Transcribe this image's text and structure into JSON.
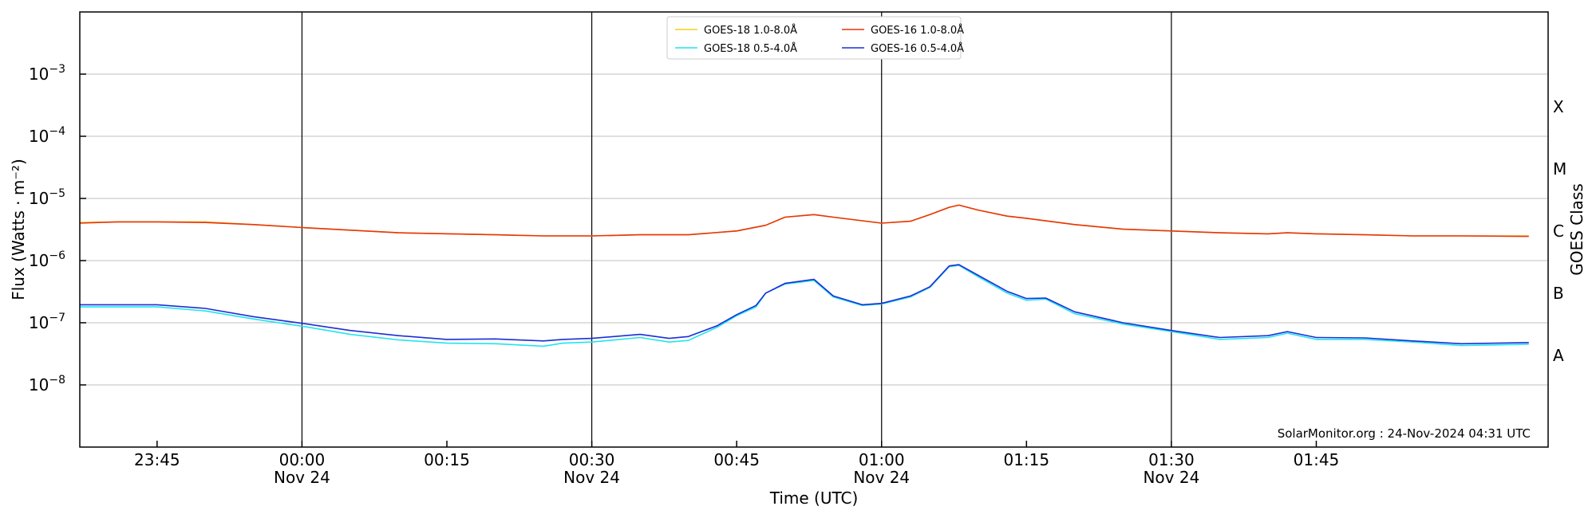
{
  "chart_data": {
    "type": "line",
    "xlabel": "Time (UTC)",
    "ylabel": "Flux (Watts · m⁻²)",
    "y2label": "GOES Class",
    "y_scale": "log",
    "ylim": [
      1e-09,
      0.01
    ],
    "xlim": [
      "23:37",
      "02:09"
    ],
    "grid": "horizontal",
    "legend_position": "top-center",
    "annotation": "SolarMonitor.org : 24-Nov-2024 04:31 UTC",
    "x_ticks": [
      {
        "time": "23:45",
        "label": "23:45",
        "sublabel": ""
      },
      {
        "time": "00:00",
        "label": "00:00",
        "sublabel": "Nov 24"
      },
      {
        "time": "00:15",
        "label": "00:15",
        "sublabel": ""
      },
      {
        "time": "00:30",
        "label": "00:30",
        "sublabel": "Nov 24"
      },
      {
        "time": "00:45",
        "label": "00:45",
        "sublabel": ""
      },
      {
        "time": "01:00",
        "label": "01:00",
        "sublabel": "Nov 24"
      },
      {
        "time": "01:15",
        "label": "01:15",
        "sublabel": ""
      },
      {
        "time": "01:30",
        "label": "01:30",
        "sublabel": "Nov 24"
      },
      {
        "time": "01:45",
        "label": "01:45",
        "sublabel": ""
      }
    ],
    "vertical_lines": [
      "00:00",
      "00:30",
      "01:00",
      "01:30"
    ],
    "y_ticks": [
      {
        "value": 1e-08,
        "mantissa": "10",
        "exponent": "−8"
      },
      {
        "value": 1e-07,
        "mantissa": "10",
        "exponent": "−7"
      },
      {
        "value": 1e-06,
        "mantissa": "10",
        "exponent": "−6"
      },
      {
        "value": 1e-05,
        "mantissa": "10",
        "exponent": "−5"
      },
      {
        "value": 0.0001,
        "mantissa": "10",
        "exponent": "−4"
      },
      {
        "value": 0.001,
        "mantissa": "10",
        "exponent": "−3"
      }
    ],
    "goes_classes": [
      {
        "label": "A",
        "value": 3e-08
      },
      {
        "label": "B",
        "value": 3e-07
      },
      {
        "label": "C",
        "value": 3e-06
      },
      {
        "label": "M",
        "value": 3e-05
      },
      {
        "label": "X",
        "value": 0.0003
      }
    ],
    "series": [
      {
        "name": "GOES-18 1.0-8.0Å",
        "color": "#f2d21a",
        "x": [
          "23:37",
          "23:41",
          "23:45",
          "23:50",
          "23:55",
          "00:00",
          "00:10",
          "00:20",
          "00:25",
          "00:30",
          "00:35",
          "00:40",
          "00:45",
          "00:48",
          "00:50",
          "00:53",
          "00:55",
          "01:00",
          "01:03",
          "01:05",
          "01:07",
          "01:08",
          "01:10",
          "01:13",
          "01:15",
          "01:20",
          "01:25",
          "01:30",
          "01:35",
          "01:40",
          "01:42",
          "01:45",
          "01:50",
          "01:55",
          "02:00",
          "02:07"
        ],
        "values": [
          4.1e-06,
          4.2e-06,
          4.2e-06,
          4.2e-06,
          3.8e-06,
          3.4e-06,
          2.8e-06,
          2.6e-06,
          2.5e-06,
          2.5e-06,
          2.6e-06,
          2.6e-06,
          3e-06,
          3.7e-06,
          5e-06,
          5.5e-06,
          5e-06,
          4e-06,
          4.3e-06,
          5.5e-06,
          7.2e-06,
          7.8e-06,
          6.5e-06,
          5.2e-06,
          4.8e-06,
          3.8e-06,
          3.2e-06,
          3e-06,
          2.8e-06,
          2.7e-06,
          2.8e-06,
          2.7e-06,
          2.6e-06,
          2.5e-06,
          2.5e-06,
          2.5e-06
        ]
      },
      {
        "name": "GOES-18 0.5-4.0Å",
        "color": "#22e3f0",
        "x": [
          "23:37",
          "23:41",
          "23:45",
          "23:50",
          "23:55",
          "00:00",
          "00:05",
          "00:10",
          "00:15",
          "00:20",
          "00:25",
          "00:27",
          "00:30",
          "00:35",
          "00:38",
          "00:40",
          "00:43",
          "00:45",
          "00:47",
          "00:48",
          "00:50",
          "00:53",
          "00:55",
          "00:58",
          "01:00",
          "01:03",
          "01:05",
          "01:07",
          "01:08",
          "01:10",
          "01:13",
          "01:15",
          "01:17",
          "01:20",
          "01:25",
          "01:30",
          "01:35",
          "01:40",
          "01:42",
          "01:45",
          "01:50",
          "01:55",
          "02:00",
          "02:07"
        ],
        "values": [
          1.8e-07,
          1.8e-07,
          1.8e-07,
          1.55e-07,
          1.15e-07,
          8.8e-08,
          6.5e-08,
          5.3e-08,
          4.7e-08,
          4.6e-08,
          4.2e-08,
          4.7e-08,
          4.9e-08,
          5.8e-08,
          4.9e-08,
          5.2e-08,
          8.5e-08,
          1.3e-07,
          1.8e-07,
          3e-07,
          4.2e-07,
          4.8e-07,
          2.6e-07,
          1.9e-07,
          2e-07,
          2.6e-07,
          3.7e-07,
          8e-07,
          8.4e-07,
          5.5e-07,
          3e-07,
          2.3e-07,
          2.4e-07,
          1.4e-07,
          9.5e-08,
          7.2e-08,
          5.4e-08,
          5.8e-08,
          6.8e-08,
          5.4e-08,
          5.4e-08,
          4.9e-08,
          4.3e-08,
          4.5e-08
        ]
      },
      {
        "name": "GOES-16 1.0-8.0Å",
        "color": "#e8340c",
        "x": [
          "23:37",
          "23:41",
          "23:45",
          "23:50",
          "23:55",
          "00:00",
          "00:10",
          "00:20",
          "00:25",
          "00:30",
          "00:35",
          "00:40",
          "00:45",
          "00:48",
          "00:50",
          "00:53",
          "00:55",
          "01:00",
          "01:03",
          "01:05",
          "01:07",
          "01:08",
          "01:10",
          "01:13",
          "01:15",
          "01:20",
          "01:25",
          "01:30",
          "01:35",
          "01:40",
          "01:42",
          "01:45",
          "01:50",
          "01:55",
          "02:00",
          "02:07"
        ],
        "values": [
          4e-06,
          4.2e-06,
          4.2e-06,
          4.1e-06,
          3.8e-06,
          3.4e-06,
          2.8e-06,
          2.6e-06,
          2.5e-06,
          2.5e-06,
          2.6e-06,
          2.6e-06,
          3e-06,
          3.7e-06,
          5e-06,
          5.5e-06,
          5e-06,
          4e-06,
          4.3e-06,
          5.5e-06,
          7.2e-06,
          7.8e-06,
          6.5e-06,
          5.2e-06,
          4.8e-06,
          3.8e-06,
          3.2e-06,
          3e-06,
          2.8e-06,
          2.7e-06,
          2.8e-06,
          2.7e-06,
          2.6e-06,
          2.5e-06,
          2.5e-06,
          2.45e-06
        ]
      },
      {
        "name": "GOES-16 0.5-4.0Å",
        "color": "#1b2ed6",
        "x": [
          "23:37",
          "23:41",
          "23:45",
          "23:50",
          "23:55",
          "00:00",
          "00:05",
          "00:10",
          "00:15",
          "00:20",
          "00:25",
          "00:27",
          "00:30",
          "00:35",
          "00:38",
          "00:40",
          "00:43",
          "00:45",
          "00:47",
          "00:48",
          "00:50",
          "00:53",
          "00:55",
          "00:58",
          "01:00",
          "01:03",
          "01:05",
          "01:07",
          "01:08",
          "01:10",
          "01:13",
          "01:15",
          "01:17",
          "01:20",
          "01:25",
          "01:30",
          "01:35",
          "01:40",
          "01:42",
          "01:45",
          "01:50",
          "01:55",
          "02:00",
          "02:07"
        ],
        "values": [
          1.95e-07,
          1.95e-07,
          1.95e-07,
          1.7e-07,
          1.25e-07,
          9.8e-08,
          7.5e-08,
          6.2e-08,
          5.4e-08,
          5.5e-08,
          5.1e-08,
          5.4e-08,
          5.6e-08,
          6.5e-08,
          5.6e-08,
          6e-08,
          9e-08,
          1.35e-07,
          1.9e-07,
          3e-07,
          4.3e-07,
          5e-07,
          2.7e-07,
          1.95e-07,
          2.05e-07,
          2.7e-07,
          3.8e-07,
          8.2e-07,
          8.6e-07,
          5.8e-07,
          3.2e-07,
          2.45e-07,
          2.5e-07,
          1.5e-07,
          1e-07,
          7.5e-08,
          5.8e-08,
          6.2e-08,
          7.2e-08,
          5.8e-08,
          5.7e-08,
          5.1e-08,
          4.6e-08,
          4.8e-08
        ]
      }
    ]
  }
}
